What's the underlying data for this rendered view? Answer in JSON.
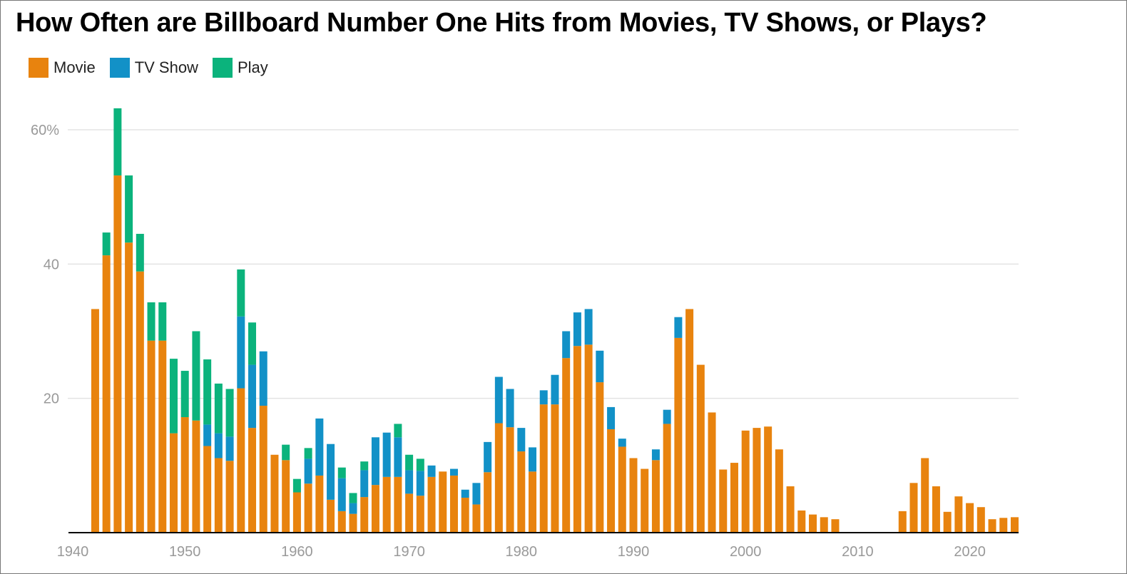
{
  "chart_data": {
    "type": "bar",
    "stacked": true,
    "title": "How Often are Billboard Number One Hits from Movies, TV Shows, or Plays?",
    "xlabel": "",
    "ylabel": "",
    "ylim": [
      0,
      63
    ],
    "y_ticks": [
      {
        "value": 20,
        "label": "20"
      },
      {
        "value": 40,
        "label": "40"
      },
      {
        "value": 60,
        "label": "60%"
      }
    ],
    "x_ticks": [
      1940,
      1950,
      1960,
      1970,
      1980,
      1990,
      2000,
      2010,
      2020
    ],
    "x_range": [
      1940,
      2025
    ],
    "grid": true,
    "legend_position": "top-left",
    "categories": [
      1942,
      1943,
      1944,
      1945,
      1946,
      1947,
      1948,
      1949,
      1950,
      1951,
      1952,
      1953,
      1954,
      1955,
      1956,
      1957,
      1958,
      1959,
      1960,
      1961,
      1962,
      1963,
      1964,
      1965,
      1966,
      1967,
      1968,
      1969,
      1970,
      1971,
      1972,
      1973,
      1974,
      1975,
      1976,
      1977,
      1978,
      1979,
      1980,
      1981,
      1982,
      1983,
      1984,
      1985,
      1986,
      1987,
      1988,
      1989,
      1990,
      1991,
      1992,
      1993,
      1994,
      1995,
      1996,
      1997,
      1998,
      1999,
      2000,
      2001,
      2002,
      2003,
      2004,
      2005,
      2006,
      2007,
      2008,
      2009,
      2010,
      2011,
      2012,
      2013,
      2014,
      2015,
      2016,
      2017,
      2018,
      2019,
      2020,
      2021,
      2022,
      2023,
      2024
    ],
    "series": [
      {
        "name": "Movie",
        "color": "#E8830E",
        "values": [
          33.3,
          41.3,
          53.2,
          43.2,
          38.9,
          28.6,
          28.6,
          14.8,
          17.2,
          16.7,
          12.9,
          11.1,
          10.7,
          21.5,
          15.6,
          18.9,
          11.6,
          10.8,
          6.0,
          7.3,
          8.5,
          4.9,
          3.2,
          2.8,
          5.3,
          7.1,
          8.3,
          8.3,
          5.8,
          5.5,
          8.3,
          9.1,
          8.5,
          5.2,
          4.2,
          9.0,
          16.3,
          15.7,
          12.1,
          9.1,
          19.1,
          19.1,
          26.0,
          27.8,
          28.0,
          22.4,
          15.4,
          12.8,
          11.1,
          9.5,
          10.8,
          16.2,
          29.0,
          33.3,
          25.0,
          17.9,
          9.4,
          10.4,
          15.2,
          15.6,
          15.8,
          12.4,
          6.9,
          3.3,
          2.7,
          2.3,
          2.0,
          0,
          0,
          0,
          0,
          0,
          3.2,
          7.4,
          11.1,
          6.9,
          3.1,
          5.4,
          4.4,
          3.8,
          2.0,
          2.2,
          2.3
        ]
      },
      {
        "name": "TV Show",
        "color": "#1291C7",
        "values": [
          0,
          0,
          0,
          0,
          0,
          0,
          0,
          0,
          0,
          0,
          3.2,
          3.7,
          3.6,
          10.7,
          9.4,
          8.1,
          0,
          0,
          0,
          3.7,
          8.5,
          8.3,
          4.9,
          1.6,
          4.0,
          7.1,
          6.6,
          5.9,
          3.5,
          3.7,
          1.7,
          0,
          1.0,
          1.2,
          3.2,
          4.5,
          6.9,
          5.7,
          3.5,
          3.6,
          2.1,
          4.4,
          4.0,
          5.0,
          5.3,
          4.7,
          3.3,
          1.2,
          0,
          0,
          1.6,
          2.1,
          3.1,
          0,
          0,
          0,
          0,
          0,
          0,
          0,
          0,
          0,
          0,
          0,
          0,
          0,
          0,
          0,
          0,
          0,
          0,
          0,
          0,
          0,
          0,
          0,
          0,
          0,
          0,
          0,
          0,
          0,
          0
        ]
      },
      {
        "name": "Play",
        "color": "#0BB37C",
        "values": [
          0,
          3.4,
          10.0,
          10.0,
          5.6,
          5.7,
          5.7,
          11.1,
          6.9,
          13.3,
          9.7,
          7.4,
          7.1,
          7.0,
          6.3,
          0,
          0,
          2.3,
          2.0,
          1.6,
          0,
          0,
          1.6,
          1.5,
          1.3,
          0,
          0,
          2.0,
          2.3,
          1.8,
          0,
          0,
          0,
          0,
          0,
          0,
          0,
          0,
          0,
          0,
          0,
          0,
          0,
          0,
          0,
          0,
          0,
          0,
          0,
          0,
          0,
          0,
          0,
          0,
          0,
          0,
          0,
          0,
          0,
          0,
          0,
          0,
          0,
          0,
          0,
          0,
          0,
          0,
          0,
          0,
          0,
          0,
          0,
          0,
          0,
          0,
          0,
          0,
          0,
          0,
          0,
          0,
          0
        ]
      }
    ]
  }
}
